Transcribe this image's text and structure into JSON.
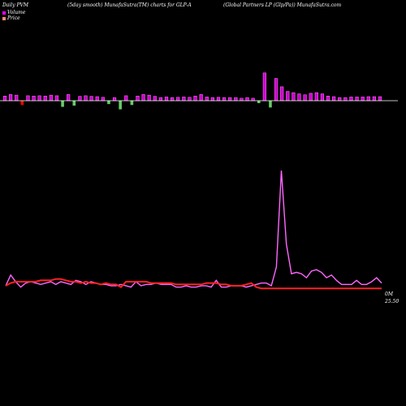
{
  "header": {
    "left": "Daily PVM",
    "middle": "(5day smooth) MunafaSutra(TM) charts for GLP-A",
    "right": "(Global Partners LP (Glp/Pa)) MunafaSutra.com"
  },
  "legend": {
    "volume_label": "Volume",
    "price_label": "Price",
    "volume_color": "#ff00ff",
    "price_color": "#ff8c69"
  },
  "right_labels": {
    "volume": "0M",
    "price": "25.50"
  },
  "colors": {
    "volume_line": "#ff66ff",
    "price_line": "#ff2222",
    "bar_up": "#cc00cc",
    "bar_down": "#ff0000",
    "bar_up_low": "#66cc66",
    "axis": "#ffffff"
  },
  "chart_data": {
    "type": "line",
    "title": "",
    "xlabel": "",
    "ylabel": "",
    "n": 66,
    "bars": [
      1.5,
      2,
      1.8,
      -1.4,
      1.6,
      1.5,
      1.6,
      1.5,
      1.8,
      1.6,
      -2,
      2,
      -1.6,
      1.4,
      1.6,
      1.4,
      1.3,
      1.1,
      -1.1,
      1,
      -2.8,
      1.6,
      -1.4,
      1.5,
      2,
      1.8,
      1.4,
      1,
      1.2,
      1,
      1.1,
      1.2,
      1.1,
      1.5,
      2,
      1.2,
      1,
      1.1,
      1,
      1,
      1,
      0.8,
      1,
      0.8,
      -0.8,
      9,
      -2.2,
      7.2,
      4.5,
      3,
      2.6,
      2.2,
      1.9,
      2.4,
      2.6,
      2.2,
      1.5,
      1.3,
      1,
      1,
      1.2,
      1.2,
      1.2,
      1.3,
      1.3,
      1.3
    ],
    "series": [
      {
        "name": "Volume",
        "values": [
          14,
          22,
          17,
          13,
          16,
          17,
          16,
          15,
          16,
          17,
          15,
          17,
          16,
          15,
          18,
          17,
          15,
          17,
          16,
          15,
          15,
          14,
          14,
          15,
          14,
          13,
          17,
          14,
          15,
          15,
          16,
          15,
          15,
          15,
          13,
          13,
          14,
          13,
          13,
          14,
          14,
          13,
          18,
          13,
          13,
          14,
          14,
          14,
          13,
          14,
          15,
          16,
          16,
          14,
          28,
          100,
          45,
          23,
          24,
          23,
          20,
          25,
          26,
          24,
          20,
          22,
          18,
          15,
          15,
          15,
          18,
          15,
          15,
          17,
          20,
          16
        ]
      },
      {
        "name": "Price",
        "values": [
          14,
          16,
          17,
          17,
          17,
          17,
          17,
          18,
          18,
          18,
          19,
          19,
          18,
          17,
          17,
          16,
          17,
          16,
          16,
          15,
          16,
          15,
          15,
          13,
          17,
          17,
          17,
          17,
          17,
          16,
          16,
          16,
          16,
          16,
          15,
          15,
          15,
          15,
          15,
          15,
          16,
          16,
          16,
          15,
          15,
          14,
          14,
          14,
          15,
          16,
          13,
          12,
          12,
          12,
          12,
          12,
          12,
          12,
          12,
          12,
          12,
          12,
          12,
          12,
          12,
          12,
          12,
          12,
          12,
          12,
          12,
          12,
          12,
          12,
          12,
          12
        ]
      }
    ]
  }
}
